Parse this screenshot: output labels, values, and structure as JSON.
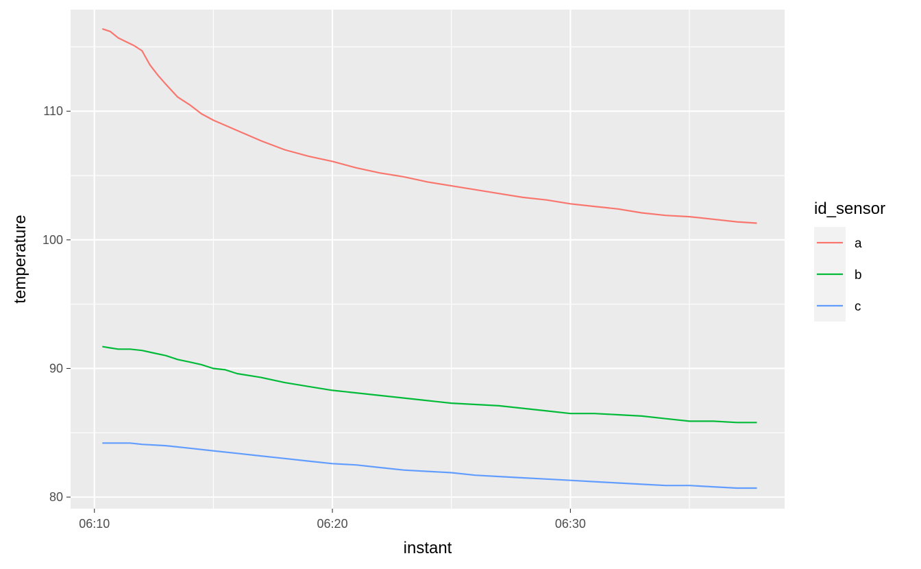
{
  "chart_data": {
    "type": "line",
    "x_axis_type": "time",
    "xlabel": "instant",
    "ylabel": "temperature",
    "x_ticks": [
      "06:10",
      "06:20",
      "06:30"
    ],
    "y_ticks": [
      80,
      90,
      100,
      110
    ],
    "xlim": [
      "06:09",
      "06:39"
    ],
    "ylim": [
      79.1,
      117.9
    ],
    "grid": true,
    "legend": {
      "title": "id_sensor",
      "position": "right"
    },
    "series": [
      {
        "name": "a",
        "color": "#F8766D",
        "x": [
          "06:10:20",
          "06:10:40",
          "06:11:00",
          "06:11:20",
          "06:11:40",
          "06:12:00",
          "06:12:20",
          "06:12:40",
          "06:13:00",
          "06:13:30",
          "06:14:00",
          "06:14:30",
          "06:15:00",
          "06:15:30",
          "06:16:00",
          "06:17:00",
          "06:18:00",
          "06:19:00",
          "06:20:00",
          "06:21:00",
          "06:22:00",
          "06:23:00",
          "06:24:00",
          "06:25:00",
          "06:26:00",
          "06:27:00",
          "06:28:00",
          "06:29:00",
          "06:30:00",
          "06:31:00",
          "06:32:00",
          "06:33:00",
          "06:34:00",
          "06:35:00",
          "06:36:00",
          "06:37:00",
          "06:37:50"
        ],
        "values": [
          116.4,
          116.2,
          115.7,
          115.4,
          115.1,
          114.7,
          113.6,
          112.8,
          112.1,
          111.1,
          110.5,
          109.8,
          109.3,
          108.9,
          108.5,
          107.7,
          107.0,
          106.5,
          106.1,
          105.6,
          105.2,
          104.9,
          104.5,
          104.2,
          103.9,
          103.6,
          103.3,
          103.1,
          102.8,
          102.6,
          102.4,
          102.1,
          101.9,
          101.8,
          101.6,
          101.4,
          101.3
        ]
      },
      {
        "name": "b",
        "color": "#00BA38",
        "x": [
          "06:10:20",
          "06:10:40",
          "06:11:00",
          "06:11:30",
          "06:12:00",
          "06:12:30",
          "06:13:00",
          "06:13:30",
          "06:14:00",
          "06:14:30",
          "06:15:00",
          "06:15:30",
          "06:16:00",
          "06:17:00",
          "06:18:00",
          "06:19:00",
          "06:20:00",
          "06:21:00",
          "06:22:00",
          "06:23:00",
          "06:24:00",
          "06:25:00",
          "06:26:00",
          "06:27:00",
          "06:28:00",
          "06:29:00",
          "06:30:00",
          "06:31:00",
          "06:32:00",
          "06:33:00",
          "06:34:00",
          "06:35:00",
          "06:36:00",
          "06:37:00",
          "06:37:50"
        ],
        "values": [
          91.7,
          91.6,
          91.5,
          91.5,
          91.4,
          91.2,
          91.0,
          90.7,
          90.5,
          90.3,
          90.0,
          89.9,
          89.6,
          89.3,
          88.9,
          88.6,
          88.3,
          88.1,
          87.9,
          87.7,
          87.5,
          87.3,
          87.2,
          87.1,
          86.9,
          86.7,
          86.5,
          86.5,
          86.4,
          86.3,
          86.1,
          85.9,
          85.9,
          85.8,
          85.8
        ]
      },
      {
        "name": "c",
        "color": "#619CFF",
        "x": [
          "06:10:20",
          "06:11:00",
          "06:11:30",
          "06:12:00",
          "06:13:00",
          "06:14:00",
          "06:15:00",
          "06:16:00",
          "06:17:00",
          "06:18:00",
          "06:19:00",
          "06:20:00",
          "06:21:00",
          "06:22:00",
          "06:23:00",
          "06:24:00",
          "06:25:00",
          "06:26:00",
          "06:27:00",
          "06:28:00",
          "06:29:00",
          "06:30:00",
          "06:31:00",
          "06:32:00",
          "06:33:00",
          "06:34:00",
          "06:35:00",
          "06:36:00",
          "06:37:00",
          "06:37:50"
        ],
        "values": [
          84.2,
          84.2,
          84.2,
          84.1,
          84.0,
          83.8,
          83.6,
          83.4,
          83.2,
          83.0,
          82.8,
          82.6,
          82.5,
          82.3,
          82.1,
          82.0,
          81.9,
          81.7,
          81.6,
          81.5,
          81.4,
          81.3,
          81.2,
          81.1,
          81.0,
          80.9,
          80.9,
          80.8,
          80.7,
          80.7
        ]
      }
    ]
  }
}
